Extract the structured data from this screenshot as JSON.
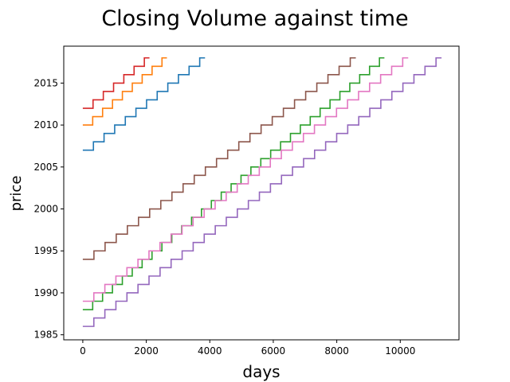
{
  "chart_data": {
    "type": "line",
    "title": "Closing Volume against time",
    "xlabel": "days",
    "ylabel": "price",
    "xlim": [
      -600,
      11850
    ],
    "ylim": [
      1984.4,
      2019.4
    ],
    "xticks": [
      0,
      2000,
      4000,
      6000,
      8000,
      10000
    ],
    "yticks": [
      1985,
      1990,
      1995,
      2000,
      2005,
      2010,
      2015
    ],
    "grid": false,
    "series": [
      {
        "color": "#d62728",
        "x_start": 0,
        "x_end": 2100,
        "y_start": 2012,
        "y_end": 2018
      },
      {
        "color": "#ff7f0e",
        "x_start": 0,
        "x_end": 2650,
        "y_start": 2010,
        "y_end": 2018
      },
      {
        "color": "#1f77b4",
        "x_start": 0,
        "x_end": 3850,
        "y_start": 2007,
        "y_end": 2018
      },
      {
        "color": "#8c564b",
        "x_start": 0,
        "x_end": 8600,
        "y_start": 1994,
        "y_end": 2018
      },
      {
        "color": "#2ca02c",
        "x_start": 0,
        "x_end": 9500,
        "y_start": 1988,
        "y_end": 2018
      },
      {
        "color": "#e377c2",
        "x_start": 0,
        "x_end": 10250,
        "y_start": 1989,
        "y_end": 2018
      },
      {
        "color": "#9467bd",
        "x_start": 0,
        "x_end": 11300,
        "y_start": 1986,
        "y_end": 2018
      }
    ]
  }
}
